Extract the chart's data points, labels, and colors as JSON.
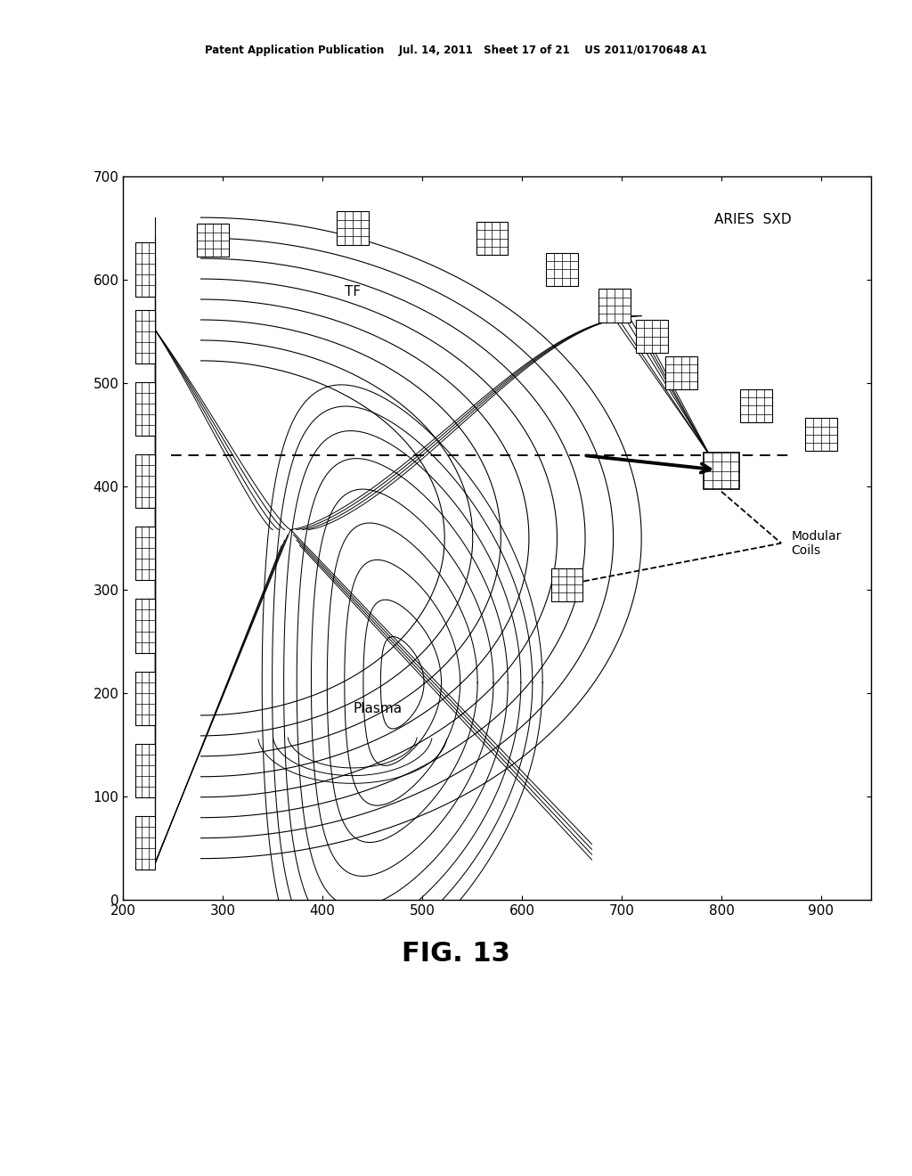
{
  "title_header": "Patent Application Publication    Jul. 14, 2011   Sheet 17 of 21    US 2011/0170648 A1",
  "fig_label": "FIG. 13",
  "aries_label": "ARIES  SXD",
  "tf_label": "TF",
  "plasma_label": "Plasma",
  "modular_coils_label": "Modular\nCoils",
  "xlim": [
    200,
    950
  ],
  "ylim": [
    0,
    700
  ],
  "xticks": [
    200,
    300,
    400,
    500,
    600,
    700,
    800,
    900
  ],
  "yticks": [
    0,
    100,
    200,
    300,
    400,
    500,
    600,
    700
  ],
  "background_color": "#ffffff",
  "dashed_line_y": 430,
  "dashed_line_x_start": 248,
  "dashed_line_x_end": 868
}
